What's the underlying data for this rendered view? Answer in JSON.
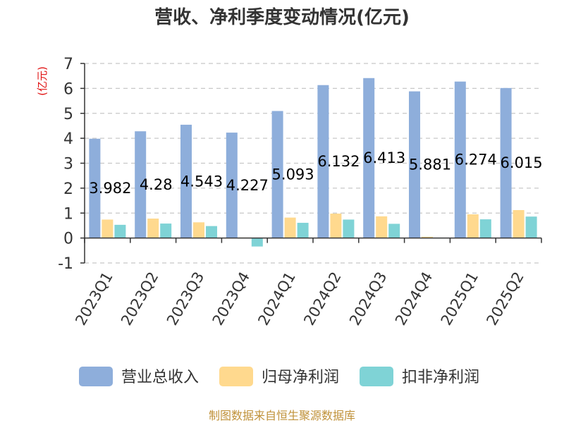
{
  "chart_data": {
    "type": "bar",
    "title": "营收、净利季度变动情况(亿元)",
    "ylabel": "(亿元)",
    "xlabel": "",
    "ylim": [
      -1,
      7
    ],
    "yticks": [
      -1,
      0,
      1,
      2,
      3,
      4,
      5,
      6,
      7
    ],
    "ytick_labels": [
      "-1",
      "0",
      "1",
      "2",
      "3",
      "4",
      "5",
      "6",
      "7"
    ],
    "grid": true,
    "legend_position": "bottom",
    "categories": [
      "2023Q1",
      "2023Q2",
      "2023Q3",
      "2023Q4",
      "2024Q1",
      "2024Q2",
      "2024Q3",
      "2024Q4",
      "2025Q1",
      "2025Q2"
    ],
    "series": [
      {
        "name": "营业总收入",
        "color": "#8eaedb",
        "values": [
          3.982,
          4.28,
          4.543,
          4.227,
          5.093,
          6.132,
          6.413,
          5.881,
          6.274,
          6.015
        ]
      },
      {
        "name": "归母净利润",
        "color": "#ffd98e",
        "values": [
          0.74,
          0.78,
          0.63,
          0.02,
          0.82,
          0.98,
          0.87,
          0.05,
          0.95,
          1.12
        ]
      },
      {
        "name": "扣非净利润",
        "color": "#7fd3d6",
        "values": [
          0.53,
          0.58,
          0.48,
          -0.34,
          0.61,
          0.74,
          0.57,
          0.0,
          0.75,
          0.86
        ]
      }
    ],
    "data_labels": [
      "3.982",
      "4.28",
      "4.543",
      "4.227",
      "5.093",
      "6.132",
      "6.413",
      "5.881",
      "6.274",
      "6.015"
    ],
    "source": "制图数据来自恒生聚源数据库"
  }
}
